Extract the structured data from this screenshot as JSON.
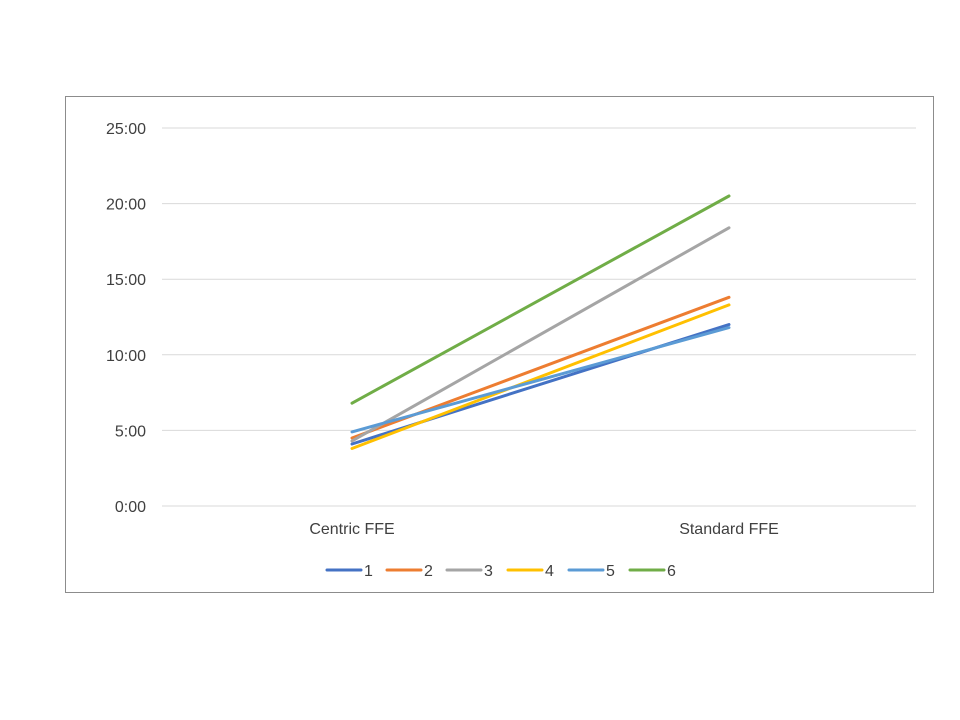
{
  "chart_data": {
    "type": "line",
    "title": "",
    "xlabel": "",
    "ylabel": "",
    "categories": [
      "Centric FFE",
      "Standard FFE"
    ],
    "y_unit": "minutes (m:ss)",
    "ylim": [
      0,
      25
    ],
    "y_ticks": [
      0,
      5,
      10,
      15,
      20,
      25
    ],
    "y_tick_labels": [
      "0:00",
      "5:00",
      "10:00",
      "15:00",
      "20:00",
      "25:00"
    ],
    "grid": "horizontal",
    "legend_position": "bottom",
    "series": [
      {
        "name": "1",
        "color": "#4472C4",
        "values": [
          4.1,
          12.0
        ]
      },
      {
        "name": "2",
        "color": "#ED7D31",
        "values": [
          4.5,
          13.8
        ]
      },
      {
        "name": "3",
        "color": "#A5A5A5",
        "values": [
          4.3,
          18.4
        ]
      },
      {
        "name": "4",
        "color": "#FFC000",
        "values": [
          3.8,
          13.3
        ]
      },
      {
        "name": "5",
        "color": "#5B9BD5",
        "values": [
          4.9,
          11.8
        ]
      },
      {
        "name": "6",
        "color": "#70AD47",
        "values": [
          6.8,
          20.5
        ]
      }
    ]
  }
}
